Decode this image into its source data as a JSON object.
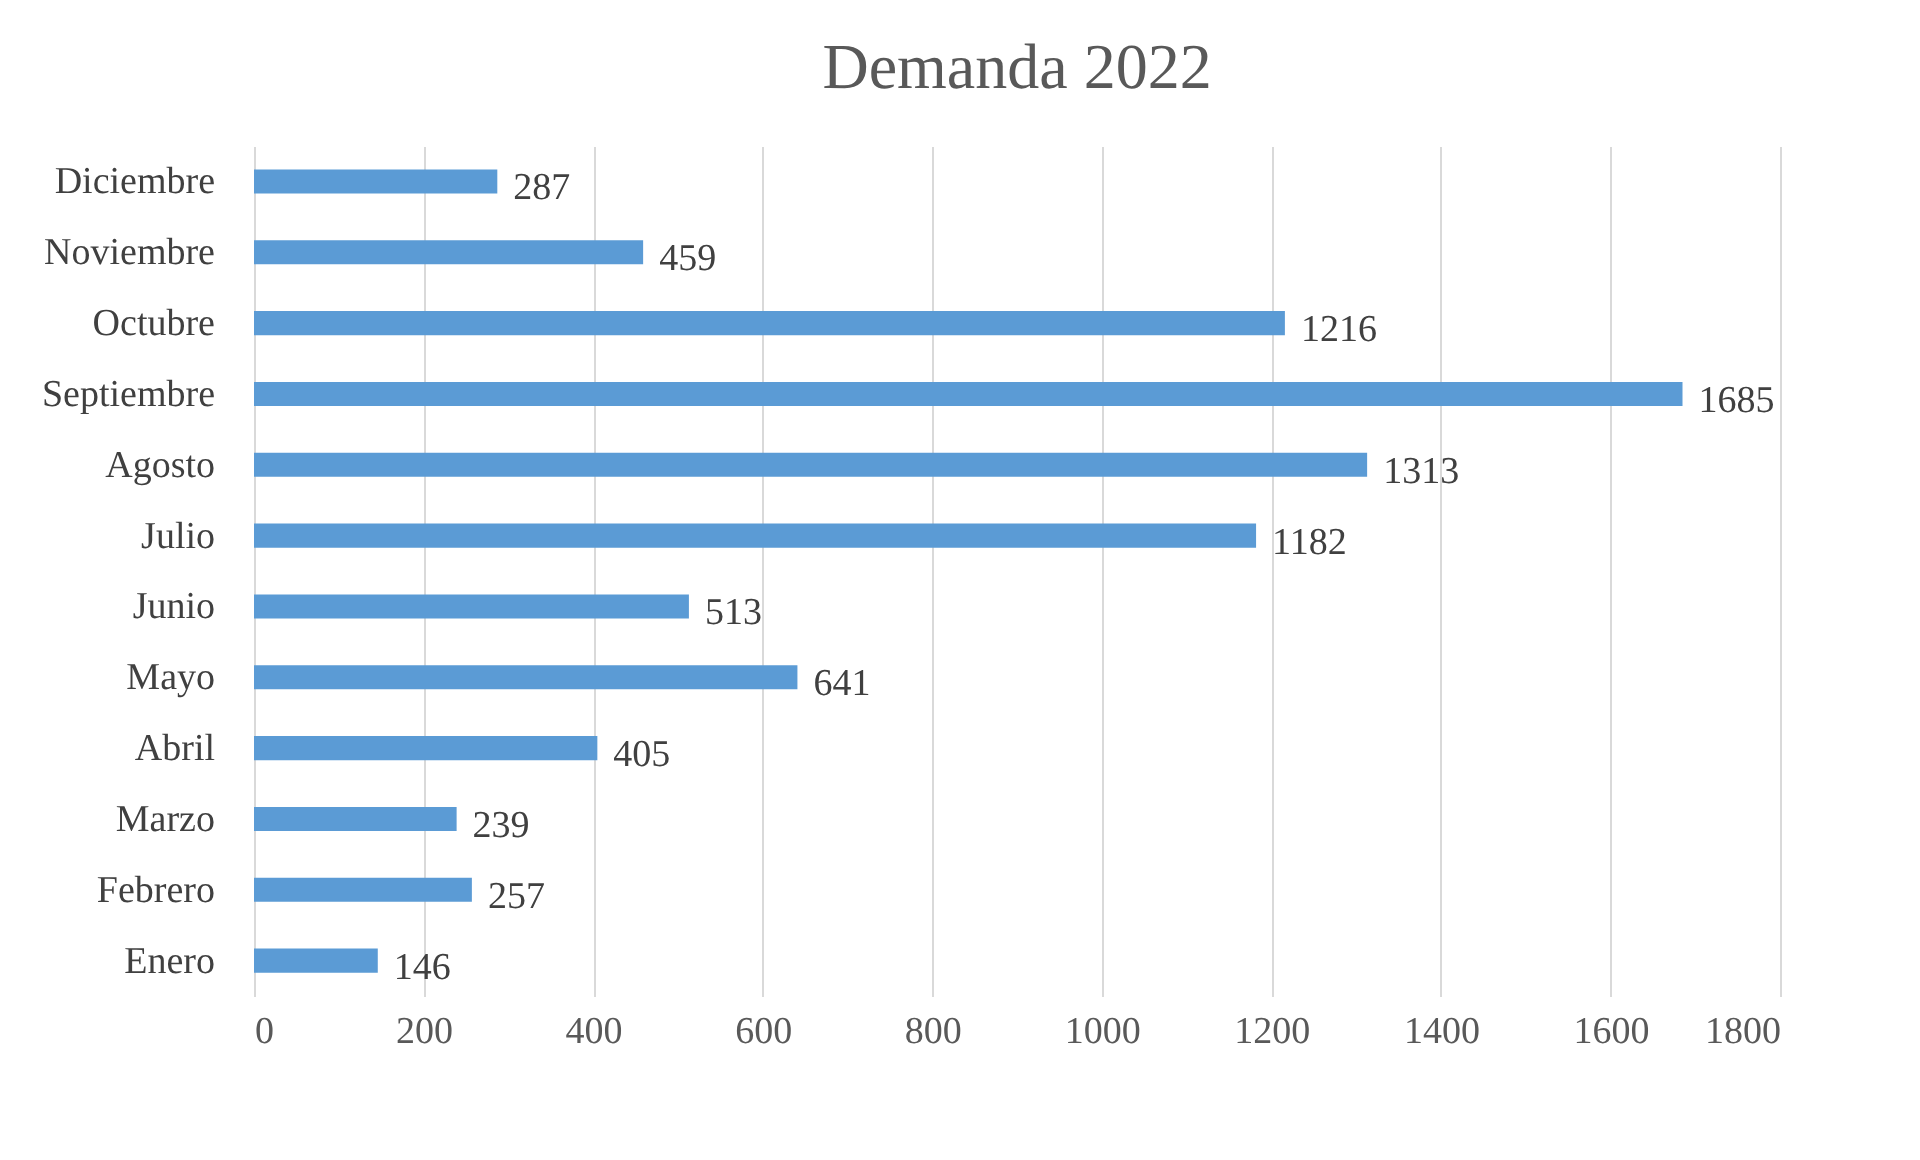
{
  "chart_data": {
    "type": "bar",
    "orientation": "horizontal",
    "title": "Demanda 2022",
    "categories": [
      "Diciembre",
      "Noviembre",
      "Octubre",
      "Septiembre",
      "Agosto",
      "Julio",
      "Junio",
      "Mayo",
      "Abril",
      "Marzo",
      "Febrero",
      "Enero"
    ],
    "values": [
      287,
      459,
      1216,
      1685,
      1313,
      1182,
      513,
      641,
      405,
      239,
      257,
      146
    ],
    "color": "#5b9bd5",
    "xlim": [
      0,
      1800
    ],
    "xticks": [
      0,
      200,
      400,
      600,
      800,
      1000,
      1200,
      1400,
      1600,
      1800
    ],
    "grid": "x",
    "data_labels": true
  }
}
